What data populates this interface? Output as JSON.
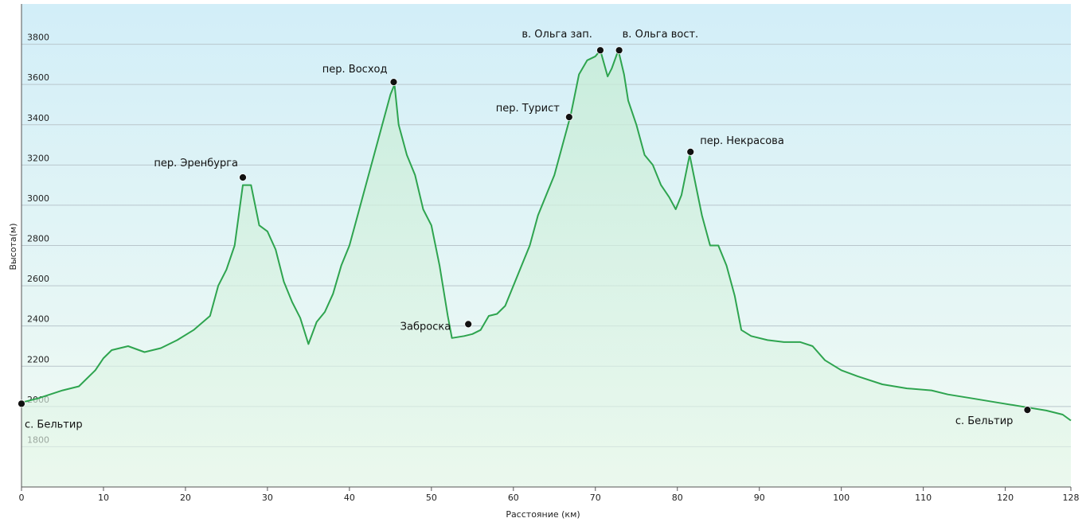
{
  "chart_data": {
    "type": "line",
    "x_label": "Расстояние (км)",
    "y_label": "Высота(м)",
    "xlim": [
      0,
      128
    ],
    "ylim": [
      1600,
      4000
    ],
    "xticks": [
      0,
      10,
      20,
      30,
      40,
      50,
      60,
      70,
      80,
      90,
      100,
      110,
      120,
      128
    ],
    "yticks": [
      1800,
      2000,
      2200,
      2400,
      2600,
      2800,
      3000,
      3200,
      3400,
      3600,
      3800
    ],
    "grid": true,
    "color": "#2ea44f",
    "x": [
      0,
      2,
      5,
      7,
      9,
      10,
      11,
      13,
      15,
      17,
      19,
      21,
      23,
      24,
      25,
      26,
      27,
      28,
      29,
      30,
      31,
      32,
      33,
      34,
      35,
      36,
      37,
      38,
      39,
      40,
      41,
      42,
      43,
      44,
      45,
      45.5,
      46,
      47,
      48,
      49,
      50,
      51,
      52,
      52.5,
      54,
      55,
      56,
      57,
      58,
      59,
      60,
      61,
      62,
      63,
      64,
      65,
      66,
      67,
      68,
      69,
      70,
      70.6,
      71.5,
      72,
      72.8,
      73.5,
      74,
      75,
      76,
      77,
      78,
      79,
      79.8,
      80.5,
      81.5,
      82,
      83,
      84,
      85,
      86,
      87,
      87.8,
      89,
      91,
      93,
      95,
      96.5,
      98,
      100,
      102,
      105,
      108,
      111,
      113,
      116,
      119,
      122,
      125,
      127,
      128
    ],
    "values": [
      2020,
      2040,
      2080,
      2100,
      2180,
      2240,
      2280,
      2300,
      2270,
      2290,
      2330,
      2380,
      2450,
      2600,
      2680,
      2800,
      3100,
      3100,
      2900,
      2870,
      2780,
      2620,
      2520,
      2440,
      2310,
      2420,
      2470,
      2560,
      2700,
      2800,
      2950,
      3100,
      3250,
      3400,
      3550,
      3600,
      3400,
      3250,
      3150,
      2980,
      2900,
      2700,
      2450,
      2340,
      2350,
      2360,
      2380,
      2450,
      2460,
      2500,
      2600,
      2700,
      2800,
      2950,
      3050,
      3150,
      3300,
      3450,
      3650,
      3720,
      3740,
      3770,
      3640,
      3680,
      3770,
      3650,
      3520,
      3400,
      3250,
      3200,
      3100,
      3040,
      2980,
      3050,
      3250,
      3150,
      2950,
      2800,
      2800,
      2700,
      2550,
      2380,
      2350,
      2330,
      2320,
      2320,
      2300,
      2230,
      2180,
      2150,
      2110,
      2090,
      2080,
      2060,
      2040,
      2020,
      2000,
      1980,
      1960,
      1930
    ],
    "annotations": [
      {
        "x": 0,
        "y": 2014,
        "label": "с. Бельтир"
      },
      {
        "x": 27,
        "y": 3138,
        "label": "пер. Эренбурга"
      },
      {
        "x": 45.4,
        "y": 3612,
        "label": "пер. Восход"
      },
      {
        "x": 54.5,
        "y": 2409,
        "label": "Заброска"
      },
      {
        "x": 66.8,
        "y": 3438,
        "label": "пер. Турист"
      },
      {
        "x": 70.6,
        "y": 3770,
        "label": "в. Ольга зап."
      },
      {
        "x": 72.9,
        "y": 3770,
        "label": "в. Ольга вост."
      },
      {
        "x": 81.6,
        "y": 3265,
        "label": "пер. Некрасова"
      },
      {
        "x": 122.7,
        "y": 1983,
        "label": "с. Бельтир"
      }
    ]
  }
}
